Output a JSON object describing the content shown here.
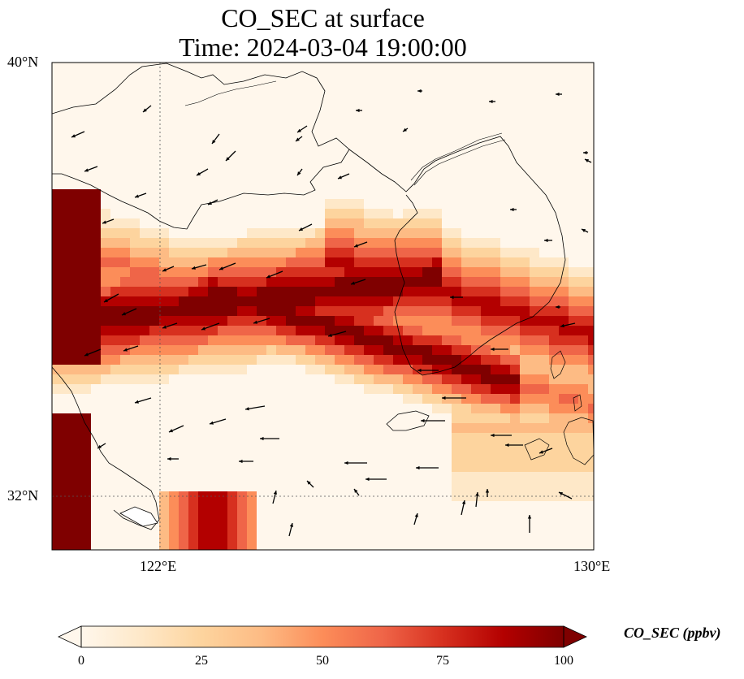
{
  "title": {
    "line1": "CO_SEC at surface",
    "line2": "Time: 2024-03-04 19:00:00"
  },
  "map": {
    "lon_range": [
      120,
      130
    ],
    "lat_range": [
      31,
      40
    ],
    "lat_ticks": [
      {
        "value": 40,
        "label": "40°N"
      },
      {
        "value": 32,
        "label": "32°N"
      }
    ],
    "lon_ticks": [
      {
        "value": 122,
        "label": "122°E"
      },
      {
        "value": 130,
        "label": "130°E"
      }
    ],
    "gridlines": {
      "lon": [
        122
      ],
      "lat": [
        32
      ],
      "style": "dotted"
    },
    "field": "CO_SEC concentration, red shades; plume high along the China coast (lat 34-36) extending east over the Yellow Sea to southwestern Korea; high patch near the Yangtze mouth (southwest corner)",
    "vectors": "wind arrows, mostly westward; northward in the south near 31-32°N"
  },
  "colorbar": {
    "label": "CO_SEC (ppbv)",
    "range": [
      0,
      100
    ],
    "ticks": [
      "0",
      "25",
      "50",
      "75",
      "100"
    ],
    "extend": "both",
    "colormap": "OrRd",
    "colors": [
      "#fff7ec",
      "#fee8c8",
      "#fdd49e",
      "#fdbb84",
      "#fc8d59",
      "#ef6548",
      "#d7301f",
      "#b30000",
      "#7f0000"
    ]
  }
}
